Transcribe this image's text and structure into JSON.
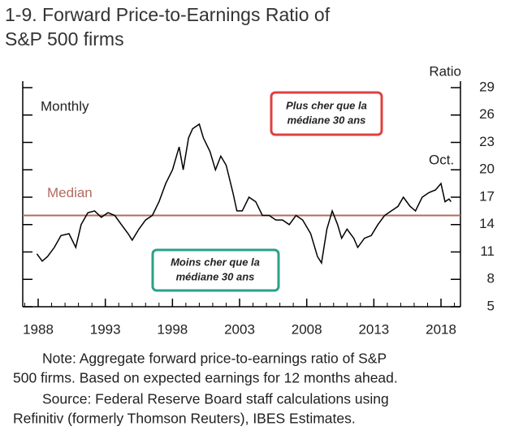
{
  "chart_data": {
    "type": "line",
    "title": [
      "1-9. Forward Price-to-Earnings Ratio of",
      "S&P 500 firms"
    ],
    "y_label": "Ratio",
    "annotations": {
      "frequency": "Monthly",
      "median_label": "Median",
      "last_obs": "Oct.",
      "above": [
        "Plus cher que la",
        "médiane 30 ans"
      ],
      "below": [
        "Moins cher que la",
        "médiane 30 ans"
      ]
    },
    "median": 15,
    "median_color": "#b36a5e",
    "color": "#000000",
    "x": [
      1987.9,
      1988.3,
      1988.7,
      1989.2,
      1989.7,
      1990.3,
      1990.8,
      1991.2,
      1991.7,
      1992.2,
      1992.7,
      1993.2,
      1993.7,
      1994.2,
      1994.7,
      1995.0,
      1995.5,
      1996.0,
      1996.5,
      1997.0,
      1997.5,
      1998.0,
      1998.5,
      1998.8,
      1999.2,
      1999.5,
      2000.0,
      2000.3,
      2000.8,
      2001.2,
      2001.6,
      2002.0,
      2002.5,
      2002.8,
      2003.2,
      2003.7,
      2004.2,
      2004.7,
      2005.2,
      2005.7,
      2006.2,
      2006.7,
      2007.2,
      2007.7,
      2008.3,
      2008.8,
      2009.1,
      2009.5,
      2009.9,
      2010.3,
      2010.6,
      2011.0,
      2011.5,
      2011.8,
      2012.3,
      2012.8,
      2013.3,
      2013.8,
      2014.3,
      2014.8,
      2015.2,
      2015.7,
      2016.1,
      2016.6,
      2017.1,
      2017.6,
      2018.0,
      2018.3,
      2018.6,
      2018.75
    ],
    "values": [
      10.8,
      10.0,
      10.5,
      11.5,
      12.8,
      13.0,
      11.5,
      14.0,
      15.3,
      15.5,
      14.8,
      15.3,
      15.0,
      14.0,
      13.0,
      12.3,
      13.5,
      14.5,
      15.0,
      16.5,
      18.5,
      20.0,
      22.5,
      20.0,
      23.5,
      24.5,
      25.0,
      23.5,
      22.0,
      20.0,
      21.5,
      20.5,
      17.5,
      15.5,
      15.5,
      17.0,
      16.5,
      15.0,
      15.0,
      14.5,
      14.5,
      14.0,
      15.0,
      14.5,
      13.0,
      10.5,
      9.8,
      13.5,
      15.5,
      14.0,
      12.5,
      13.5,
      12.5,
      11.5,
      12.5,
      12.8,
      14.0,
      15.0,
      15.5,
      16.0,
      17.0,
      16.0,
      15.5,
      17.0,
      17.5,
      17.8,
      18.5,
      16.5,
      16.8,
      16.5
    ],
    "xlim": [
      1986.85,
      2019.45
    ],
    "xticks": [
      1988,
      1993,
      1998,
      2003,
      2008,
      2013,
      2018
    ],
    "ylim": [
      5,
      29
    ],
    "yticks": [
      5,
      8,
      11,
      14,
      17,
      20,
      23,
      26,
      29
    ],
    "note": [
      "Note: Aggregate forward price-to-earnings ratio of S&P",
      "500 firms. Based on expected earnings for 12 months ahead.",
      "Source: Federal Reserve Board staff calculations using",
      "Refinitiv (formerly Thomson Reuters), IBES Estimates."
    ]
  }
}
